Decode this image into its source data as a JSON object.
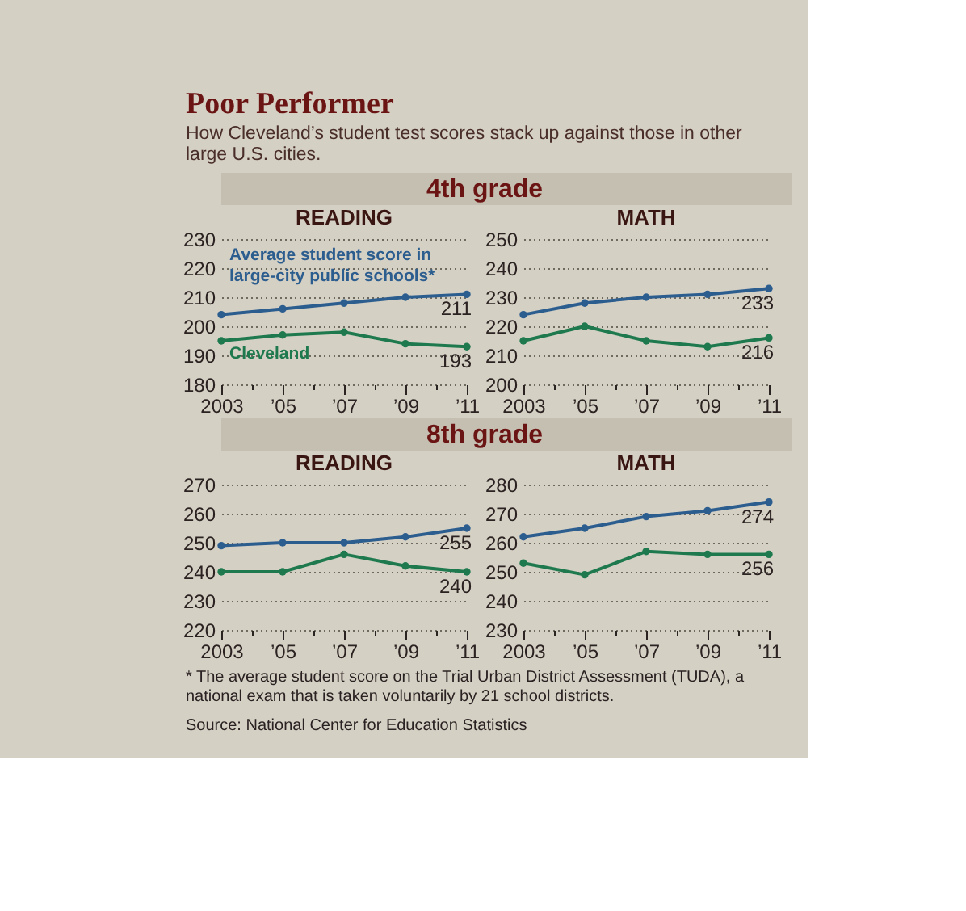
{
  "chart_data": [
    {
      "type": "other",
      "title": "Poor Performer",
      "subtitle": "How Cleveland’s student test scores stack up against those in other large U.S. cities."
    },
    {
      "type": "other",
      "title": "4th grade"
    },
    {
      "type": "line",
      "title": "READING",
      "x": [
        2003,
        2005,
        2007,
        2009,
        2011
      ],
      "xlim": [
        2003,
        2011
      ],
      "xticks": [
        {
          "value": 2003,
          "label": "2003"
        },
        {
          "value": 2004,
          "label": null
        },
        {
          "value": 2005,
          "label": "’05"
        },
        {
          "value": 2006,
          "label": null
        },
        {
          "value": 2007,
          "label": "’07"
        },
        {
          "value": 2008,
          "label": null
        },
        {
          "value": 2009,
          "label": "’09"
        },
        {
          "value": 2010,
          "label": null
        },
        {
          "value": 2011,
          "label": "’11"
        }
      ],
      "ylim": [
        180,
        230
      ],
      "yticks": [
        180,
        190,
        200,
        210,
        220,
        230
      ],
      "grid": "y",
      "marker": "circle",
      "series": [
        {
          "name": "Average student score in large-city public schools*",
          "color": "#2c5d8f",
          "values": [
            204,
            206,
            208,
            210,
            211
          ],
          "value_labels": [
            null,
            null,
            null,
            null,
            "211"
          ]
        },
        {
          "name": "Cleveland",
          "color": "#1e7a4e",
          "values": [
            195,
            197,
            198,
            194,
            193
          ],
          "value_labels": [
            null,
            null,
            null,
            null,
            "193"
          ]
        }
      ]
    },
    {
      "type": "line",
      "title": "MATH",
      "x": [
        2003,
        2005,
        2007,
        2009,
        2011
      ],
      "xlim": [
        2003,
        2011
      ],
      "xticks": [
        {
          "value": 2003,
          "label": "2003"
        },
        {
          "value": 2004,
          "label": null
        },
        {
          "value": 2005,
          "label": "’05"
        },
        {
          "value": 2006,
          "label": null
        },
        {
          "value": 2007,
          "label": "’07"
        },
        {
          "value": 2008,
          "label": null
        },
        {
          "value": 2009,
          "label": "’09"
        },
        {
          "value": 2010,
          "label": null
        },
        {
          "value": 2011,
          "label": "’11"
        }
      ],
      "ylim": [
        200,
        250
      ],
      "yticks": [
        200,
        210,
        220,
        230,
        240,
        250
      ],
      "grid": "y",
      "marker": "circle",
      "series": [
        {
          "color": "#2c5d8f",
          "values": [
            224,
            228,
            230,
            231,
            233
          ],
          "value_labels": [
            null,
            null,
            null,
            null,
            "233"
          ]
        },
        {
          "color": "#1e7a4e",
          "values": [
            215,
            220,
            215,
            213,
            216
          ],
          "value_labels": [
            null,
            null,
            null,
            null,
            "216"
          ]
        }
      ]
    },
    {
      "type": "other",
      "title": "8th grade"
    },
    {
      "type": "line",
      "title": "READING",
      "x": [
        2003,
        2005,
        2007,
        2009,
        2011
      ],
      "xlim": [
        2003,
        2011
      ],
      "xticks": [
        {
          "value": 2003,
          "label": "2003"
        },
        {
          "value": 2004,
          "label": null
        },
        {
          "value": 2005,
          "label": "’05"
        },
        {
          "value": 2006,
          "label": null
        },
        {
          "value": 2007,
          "label": "’07"
        },
        {
          "value": 2008,
          "label": null
        },
        {
          "value": 2009,
          "label": "’09"
        },
        {
          "value": 2010,
          "label": null
        },
        {
          "value": 2011,
          "label": "’11"
        }
      ],
      "ylim": [
        220,
        270
      ],
      "yticks": [
        220,
        230,
        240,
        250,
        260,
        270
      ],
      "grid": "y",
      "marker": "circle",
      "series": [
        {
          "color": "#2c5d8f",
          "values": [
            249,
            250,
            250,
            252,
            255
          ],
          "value_labels": [
            null,
            null,
            null,
            null,
            "255"
          ]
        },
        {
          "color": "#1e7a4e",
          "values": [
            240,
            240,
            246,
            242,
            240
          ],
          "value_labels": [
            null,
            null,
            null,
            null,
            "240"
          ]
        }
      ]
    },
    {
      "type": "line",
      "title": "MATH",
      "x": [
        2003,
        2005,
        2007,
        2009,
        2011
      ],
      "xlim": [
        2003,
        2011
      ],
      "xticks": [
        {
          "value": 2003,
          "label": "2003"
        },
        {
          "value": 2004,
          "label": null
        },
        {
          "value": 2005,
          "label": "’05"
        },
        {
          "value": 2006,
          "label": null
        },
        {
          "value": 2007,
          "label": "’07"
        },
        {
          "value": 2008,
          "label": null
        },
        {
          "value": 2009,
          "label": "’09"
        },
        {
          "value": 2010,
          "label": null
        },
        {
          "value": 2011,
          "label": "’11"
        }
      ],
      "ylim": [
        230,
        280
      ],
      "yticks": [
        230,
        240,
        250,
        260,
        270,
        280
      ],
      "grid": "y",
      "marker": "circle",
      "series": [
        {
          "color": "#2c5d8f",
          "values": [
            262,
            265,
            269,
            271,
            274
          ],
          "value_labels": [
            null,
            null,
            null,
            null,
            "274"
          ]
        },
        {
          "color": "#1e7a4e",
          "values": [
            253,
            249,
            257,
            256,
            256
          ],
          "value_labels": [
            null,
            null,
            null,
            null,
            "256"
          ]
        }
      ]
    },
    {
      "type": "other",
      "annotations": [
        "* The average student score on the Trial Urban District Assessment (TUDA), a national exam that is taken voluntarily by 21 school districts.",
        "Source: National Center for Education Statistics"
      ]
    }
  ]
}
